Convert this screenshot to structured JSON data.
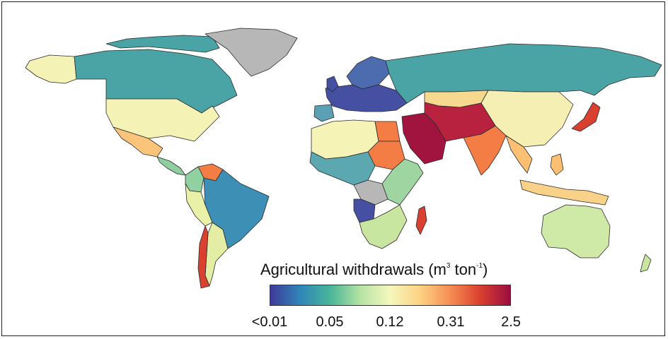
{
  "legend": {
    "title_main": "Agricultural withdrawals (m",
    "title_sup1": "3",
    "title_mid": " ton",
    "title_sup2": "-1",
    "title_end": ")",
    "ticks": [
      "<0.01",
      "0.05",
      "0.12",
      "0.31",
      "2.5"
    ],
    "colors": [
      "#3f3a9a",
      "#2f86b8",
      "#49b59a",
      "#b5e3a3",
      "#f6f7bd",
      "#fdd283",
      "#f68d52",
      "#d9402f",
      "#9b0d3f"
    ]
  },
  "map": {
    "no_data_color": "#b7b7b7",
    "region_colors": {
      "canada": "#4aa4a6",
      "alaska": "#f4f2b4",
      "greenland": "#b7b7b7",
      "usa": "#f4f2b4",
      "mexico": "#fac57a",
      "central_america": "#8fcf9f",
      "venezuela": "#f47c45",
      "colombia": "#91d0a0",
      "brazil": "#3d8fb5",
      "peru": "#e9f0a8",
      "argentina": "#e3eea4",
      "chile": "#d9402f",
      "russia": "#4aa4a6",
      "europe": "#4650a3",
      "scandinavia": "#4d6cb0",
      "iberia": "#5ca0b6",
      "middle_east": "#a0143f",
      "iran_afghanistan": "#b9223f",
      "india": "#f47c45",
      "china": "#f6efb3",
      "kazakhstan": "#f6d98e",
      "japan": "#d9402f",
      "southeast_asia": "#fdbf72",
      "indonesia": "#f9d188",
      "australia": "#cfe9a6",
      "africa_north": "#f6f3b6",
      "sudan": "#f47c45",
      "egypt": "#f47c45",
      "africa_central": "#5ba8b0",
      "congo": "#b7b7b7",
      "africa_east": "#9fd5a1",
      "africa_south": "#c9e6a0",
      "madagascar": "#d9402f",
      "angola": "#4650a3",
      "new_zealand": "#c9e6a0"
    }
  }
}
